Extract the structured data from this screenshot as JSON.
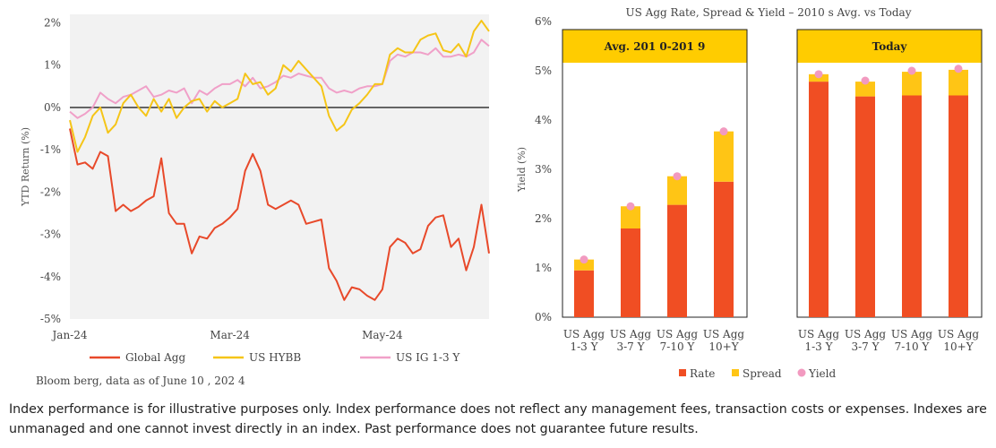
{
  "source_note": "Bloom berg, data as of June 10 , 202 4",
  "disclaimer": "Index performance is for illustrative purposes only. Index performance does not reflect any management fees, transaction costs or expenses. Indexes are unmanaged and one cannot invest directly in an index. Past performance does not guarantee future results.",
  "colors": {
    "global_agg": "#e8492a",
    "us_hybb": "#f5c518",
    "us_ig": "#f0a0c8",
    "rate": "#f04e23",
    "spread": "#ffc515",
    "yield": "#f29ac0",
    "panel_header": "#ffcc00"
  },
  "chart_data": [
    {
      "type": "line",
      "title": "",
      "xlabel": "",
      "ylabel": "YTD Return (%)",
      "ylim": [
        -5,
        2.2
      ],
      "yticks": [
        2,
        1,
        0,
        -1,
        -2,
        -3,
        -4,
        -5
      ],
      "ytick_labels": [
        "2%",
        "1%",
        "0%",
        "-1%",
        "-2%",
        "-3%",
        "-4%",
        "-5%"
      ],
      "xlim": [
        0,
        110
      ],
      "xticks": [
        0,
        42,
        82
      ],
      "xtick_labels": [
        "Jan-24",
        "Mar-24",
        "May-24"
      ],
      "legend_position": "bottom",
      "series": [
        {
          "name": "Global Agg",
          "color": "#e8492a",
          "x": [
            0,
            2,
            4,
            6,
            8,
            10,
            12,
            14,
            16,
            18,
            20,
            22,
            24,
            26,
            28,
            30,
            32,
            34,
            36,
            38,
            40,
            42,
            44,
            46,
            48,
            50,
            52,
            54,
            56,
            58,
            60,
            62,
            64,
            66,
            68,
            70,
            72,
            74,
            76,
            78,
            80,
            82,
            84,
            86,
            88,
            90,
            92,
            94,
            96,
            98,
            100,
            102,
            104,
            106,
            108,
            110
          ],
          "y": [
            -0.5,
            -1.35,
            -1.3,
            -1.45,
            -1.05,
            -1.15,
            -2.45,
            -2.3,
            -2.45,
            -2.35,
            -2.2,
            -2.1,
            -1.2,
            -2.5,
            -2.75,
            -2.75,
            -3.45,
            -3.05,
            -3.1,
            -2.85,
            -2.75,
            -2.6,
            -2.4,
            -1.5,
            -1.1,
            -1.5,
            -2.3,
            -2.4,
            -2.3,
            -2.2,
            -2.3,
            -2.75,
            -2.7,
            -2.65,
            -3.8,
            -4.1,
            -4.55,
            -4.25,
            -4.3,
            -4.45,
            -4.55,
            -4.3,
            -3.3,
            -3.1,
            -3.2,
            -3.45,
            -3.35,
            -2.8,
            -2.6,
            -2.55,
            -3.3,
            -3.1,
            -3.85,
            -3.3,
            -2.3,
            -3.45
          ]
        },
        {
          "name": "US HYBB",
          "color": "#f5c518",
          "x": [
            0,
            2,
            4,
            6,
            8,
            10,
            12,
            14,
            16,
            18,
            20,
            22,
            24,
            26,
            28,
            30,
            32,
            34,
            36,
            38,
            40,
            42,
            44,
            46,
            48,
            50,
            52,
            54,
            56,
            58,
            60,
            62,
            64,
            66,
            68,
            70,
            72,
            74,
            76,
            78,
            80,
            82,
            84,
            86,
            88,
            90,
            92,
            94,
            96,
            98,
            100,
            102,
            104,
            106,
            108,
            110
          ],
          "y": [
            -0.3,
            -1.05,
            -0.7,
            -0.2,
            0,
            -0.6,
            -0.4,
            0.1,
            0.3,
            0,
            -0.2,
            0.2,
            -0.1,
            0.2,
            -0.25,
            0,
            0.15,
            0.2,
            -0.1,
            0.15,
            0,
            0.1,
            0.2,
            0.8,
            0.55,
            0.6,
            0.3,
            0.45,
            1.0,
            0.85,
            1.1,
            0.9,
            0.7,
            0.5,
            -0.2,
            -0.55,
            -0.4,
            -0.05,
            0.1,
            0.3,
            0.55,
            0.55,
            1.25,
            1.4,
            1.3,
            1.3,
            1.6,
            1.7,
            1.75,
            1.35,
            1.3,
            1.5,
            1.2,
            1.8,
            2.05,
            1.8
          ]
        },
        {
          "name": "US IG 1-3 Y",
          "color": "#f0a0c8",
          "x": [
            0,
            2,
            4,
            6,
            8,
            10,
            12,
            14,
            16,
            18,
            20,
            22,
            24,
            26,
            28,
            30,
            32,
            34,
            36,
            38,
            40,
            42,
            44,
            46,
            48,
            50,
            52,
            54,
            56,
            58,
            60,
            62,
            64,
            66,
            68,
            70,
            72,
            74,
            76,
            78,
            80,
            82,
            84,
            86,
            88,
            90,
            92,
            94,
            96,
            98,
            100,
            102,
            104,
            106,
            108,
            110
          ],
          "y": [
            -0.1,
            -0.25,
            -0.15,
            0,
            0.35,
            0.2,
            0.1,
            0.25,
            0.3,
            0.4,
            0.5,
            0.25,
            0.3,
            0.4,
            0.35,
            0.45,
            0.1,
            0.4,
            0.3,
            0.45,
            0.55,
            0.55,
            0.65,
            0.5,
            0.7,
            0.45,
            0.5,
            0.6,
            0.75,
            0.7,
            0.8,
            0.75,
            0.7,
            0.7,
            0.45,
            0.35,
            0.4,
            0.35,
            0.45,
            0.5,
            0.5,
            0.55,
            1.1,
            1.25,
            1.2,
            1.3,
            1.3,
            1.25,
            1.4,
            1.2,
            1.2,
            1.25,
            1.2,
            1.3,
            1.6,
            1.45
          ]
        }
      ]
    },
    {
      "type": "bar",
      "title": "US Agg Rate, Spread & Yield – 2010 s Avg. vs Today",
      "xlabel": "",
      "ylabel": "Yield (%)",
      "ylim": [
        0,
        6
      ],
      "yticks": [
        0,
        1,
        2,
        3,
        4,
        5,
        6
      ],
      "ytick_labels": [
        "0%",
        "1%",
        "2%",
        "3%",
        "4%",
        "5%",
        "6%"
      ],
      "legend_position": "bottom",
      "panels": [
        {
          "label": "Avg. 201 0-201 9",
          "categories": [
            [
              "US Agg",
              "1-3 Y"
            ],
            [
              "US Agg",
              "3-7 Y"
            ],
            [
              "US Agg",
              "7-10 Y"
            ],
            [
              "US Agg",
              "10+Y"
            ]
          ],
          "rate": [
            0.95,
            1.8,
            2.28,
            2.75
          ],
          "spread": [
            0.22,
            0.45,
            0.58,
            1.02
          ],
          "yield": [
            1.17,
            2.25,
            2.86,
            3.77
          ]
        },
        {
          "label": "Today",
          "categories": [
            [
              "US Agg",
              "1-3 Y"
            ],
            [
              "US Agg",
              "3-7 Y"
            ],
            [
              "US Agg",
              "7-10 Y"
            ],
            [
              "US Agg",
              "10+Y"
            ]
          ],
          "rate": [
            4.78,
            4.48,
            4.5,
            4.5
          ],
          "spread": [
            0.15,
            0.3,
            0.48,
            0.52
          ],
          "yield": [
            4.93,
            4.8,
            5.0,
            5.04
          ]
        }
      ],
      "series": [
        {
          "name": "Rate",
          "color": "#f04e23"
        },
        {
          "name": "Spread",
          "color": "#ffc515"
        },
        {
          "name": "Yield",
          "color": "#f29ac0"
        }
      ]
    }
  ]
}
